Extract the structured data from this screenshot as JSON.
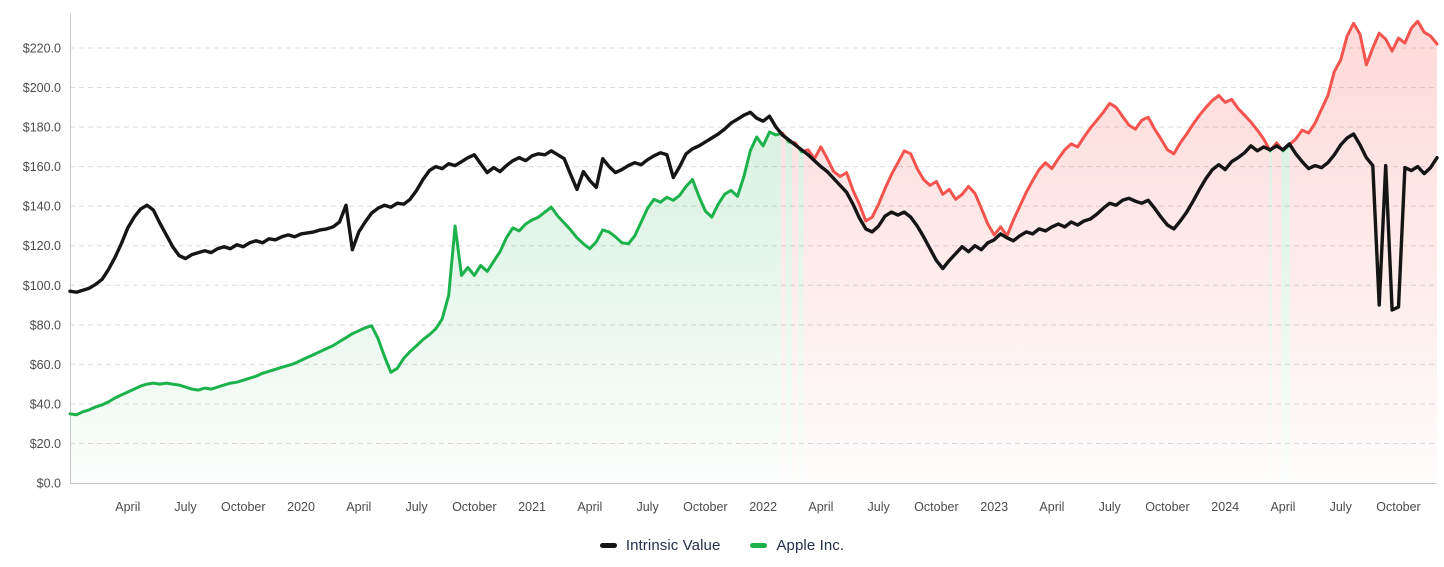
{
  "chart_data": {
    "type": "line",
    "title": "",
    "description": "Stock price vs intrinsic value; price area shaded green when below intrinsic value, red when above",
    "x_axis": {
      "unit": "months from chart start",
      "range": [
        0,
        71
      ],
      "ticks": [
        {
          "m": 3,
          "label": "April"
        },
        {
          "m": 6,
          "label": "July"
        },
        {
          "m": 9,
          "label": "October"
        },
        {
          "m": 12,
          "label": "2020"
        },
        {
          "m": 15,
          "label": "April"
        },
        {
          "m": 18,
          "label": "July"
        },
        {
          "m": 21,
          "label": "October"
        },
        {
          "m": 24,
          "label": "2021"
        },
        {
          "m": 27,
          "label": "April"
        },
        {
          "m": 30,
          "label": "July"
        },
        {
          "m": 33,
          "label": "October"
        },
        {
          "m": 36,
          "label": "2022"
        },
        {
          "m": 39,
          "label": "April"
        },
        {
          "m": 42,
          "label": "July"
        },
        {
          "m": 45,
          "label": "October"
        },
        {
          "m": 48,
          "label": "2023"
        },
        {
          "m": 51,
          "label": "April"
        },
        {
          "m": 54,
          "label": "July"
        },
        {
          "m": 57,
          "label": "October"
        },
        {
          "m": 60,
          "label": "2024"
        },
        {
          "m": 63,
          "label": "April"
        },
        {
          "m": 66,
          "label": "July"
        },
        {
          "m": 69,
          "label": "October"
        }
      ]
    },
    "y_axis": {
      "range": [
        0,
        236
      ],
      "tick_step": 20,
      "ticks": [
        {
          "v": 0,
          "label": "$0.0"
        },
        {
          "v": 20,
          "label": "$20.0"
        },
        {
          "v": 40,
          "label": "$40.0"
        },
        {
          "v": 60,
          "label": "$60.0"
        },
        {
          "v": 80,
          "label": "$80.0"
        },
        {
          "v": 100,
          "label": "$100.0"
        },
        {
          "v": 120,
          "label": "$120.0"
        },
        {
          "v": 140,
          "label": "$140.0"
        },
        {
          "v": 160,
          "label": "$160.0"
        },
        {
          "v": 180,
          "label": "$180.0"
        },
        {
          "v": 200,
          "label": "$200.0"
        },
        {
          "v": 220,
          "label": "$220.0"
        }
      ]
    },
    "grid": {
      "horizontal": true,
      "vertical": false,
      "style": "dashed"
    },
    "legend_position": "bottom-center",
    "legend": [
      {
        "label": "Intrinsic Value",
        "color": "#151515"
      },
      {
        "label": "Apple Inc.",
        "color": "#1cb24b"
      }
    ],
    "series": [
      {
        "name": "Intrinsic Value",
        "role": "intrinsic",
        "t_start": 0,
        "t_step": 0.333333,
        "values": [
          97,
          96.5,
          97.5,
          98.5,
          100.5,
          103,
          108,
          114,
          121,
          129,
          134.5,
          138.5,
          140.5,
          138,
          131.5,
          125.5,
          119.5,
          115,
          113.5,
          115.5,
          116.5,
          117.5,
          116.5,
          118.5,
          119.5,
          118.5,
          120.5,
          119.5,
          121.5,
          122.5,
          121.5,
          123.5,
          123,
          124.5,
          125.5,
          124.5,
          126,
          126.5,
          127,
          128,
          128.5,
          129.5,
          132,
          140.5,
          118,
          127,
          132,
          136.5,
          139,
          140.5,
          139.5,
          141.5,
          141,
          143.5,
          148,
          153.5,
          158,
          160,
          159,
          161.5,
          160.5,
          162.5,
          164.5,
          166,
          161.5,
          157,
          159.5,
          157.5,
          160.5,
          163,
          164.5,
          163,
          165.5,
          166.5,
          166,
          168,
          166,
          164,
          156,
          148.5,
          157.5,
          153,
          149.5,
          164,
          160,
          157,
          158.5,
          160.5,
          162,
          161,
          163.5,
          165.5,
          167,
          166,
          154.5,
          160,
          166.5,
          169,
          170.5,
          172.5,
          174.5,
          176.5,
          179,
          182,
          184,
          186,
          187.5,
          184.5,
          183,
          185.5,
          180,
          176,
          173.5,
          171,
          168.5,
          166,
          163,
          160,
          157.5,
          154,
          150.5,
          147,
          141,
          134,
          128.5,
          127,
          130,
          135,
          137,
          135.5,
          137,
          134.5,
          130,
          124.5,
          118.5,
          112.5,
          108.5,
          112.5,
          116,
          119.5,
          117,
          120,
          118,
          121.5,
          123,
          126,
          124,
          122.5,
          125,
          127,
          126,
          128.5,
          127.5,
          129.5,
          131,
          129.5,
          132,
          130.5,
          132.5,
          133.5,
          136,
          139,
          141.5,
          140.5,
          143,
          144,
          142.5,
          141.5,
          143,
          139,
          134.5,
          130.5,
          128.5,
          132.5,
          137,
          142.5,
          148.5,
          154,
          158.5,
          161,
          158.5,
          162.5,
          164.5,
          167,
          170.5,
          168,
          170,
          168.5,
          170.5,
          168.5,
          171.5,
          166.5,
          162.5,
          159,
          160.5,
          159.5,
          162,
          166,
          171,
          174.5,
          176.5,
          171,
          164.5,
          160.5,
          90,
          160.5,
          87.5,
          89,
          159.5,
          158,
          160,
          156.5,
          159.5,
          164.5
        ]
      },
      {
        "name": "Apple Inc.",
        "role": "price",
        "t_start": 0,
        "t_step": 0.333333,
        "values": [
          35,
          34.5,
          36,
          37,
          38.5,
          39.5,
          41,
          43,
          44.5,
          46,
          47.5,
          49,
          50,
          50.5,
          50,
          50.5,
          50,
          49.5,
          48.5,
          47.5,
          47,
          48,
          47.5,
          48.5,
          49.5,
          50.5,
          51,
          52,
          53,
          54,
          55.5,
          56.5,
          57.5,
          58.5,
          59.5,
          60.5,
          62,
          63.5,
          65,
          66.5,
          68,
          69.5,
          71.5,
          73.5,
          75.5,
          77,
          78.5,
          79.5,
          73,
          64,
          56,
          58,
          63,
          66.5,
          69.5,
          72.5,
          75,
          78,
          83,
          95,
          130,
          105,
          109,
          105,
          110,
          107,
          112,
          117,
          124,
          129,
          127.5,
          131,
          133,
          134.5,
          137,
          139.5,
          135,
          131.5,
          128,
          124,
          121,
          118.5,
          122,
          128,
          127,
          124.5,
          121.5,
          121,
          125,
          132,
          139,
          143.5,
          142,
          144.5,
          143,
          145.5,
          150,
          153.5,
          145,
          137.5,
          134.5,
          141,
          146,
          148,
          145,
          155,
          168,
          175,
          170.5,
          177.5,
          176,
          177,
          172.5,
          172,
          167.5,
          168.5,
          164,
          170,
          164,
          157.5,
          155,
          157,
          148,
          141,
          132.5,
          134.5,
          141,
          149,
          156,
          162,
          168,
          166.5,
          159,
          153.5,
          150.5,
          152.5,
          146,
          148.5,
          143.5,
          146,
          150,
          146.5,
          139,
          131,
          125.5,
          129.5,
          125,
          133,
          140,
          147,
          153,
          158.5,
          162,
          159,
          164,
          168.5,
          171.5,
          170,
          175,
          179.5,
          183.5,
          187.5,
          192,
          190,
          185.5,
          181,
          179,
          183.5,
          185,
          179,
          174,
          168.5,
          166.5,
          172,
          176.5,
          181.5,
          186,
          190,
          193.5,
          196,
          192.5,
          194,
          189.5,
          186,
          182.5,
          178.5,
          174,
          168,
          172,
          168,
          171,
          174,
          178.5,
          177,
          182,
          189,
          196,
          208,
          214,
          226,
          232.5,
          227,
          211.5,
          220,
          227.5,
          224.5,
          218.5,
          225,
          222.5,
          230,
          233.5,
          228,
          226,
          222
        ]
      }
    ],
    "colors": {
      "intrinsic_line": "#151515",
      "price_below_line": "#1cb24b",
      "price_above_line": "#f4534e",
      "grid_line": "#dcdcdc",
      "axis_line": "#c9c9c9",
      "tick_label": "#4c4c4c",
      "legend_text": "#223049",
      "background": "#ffffff"
    }
  }
}
